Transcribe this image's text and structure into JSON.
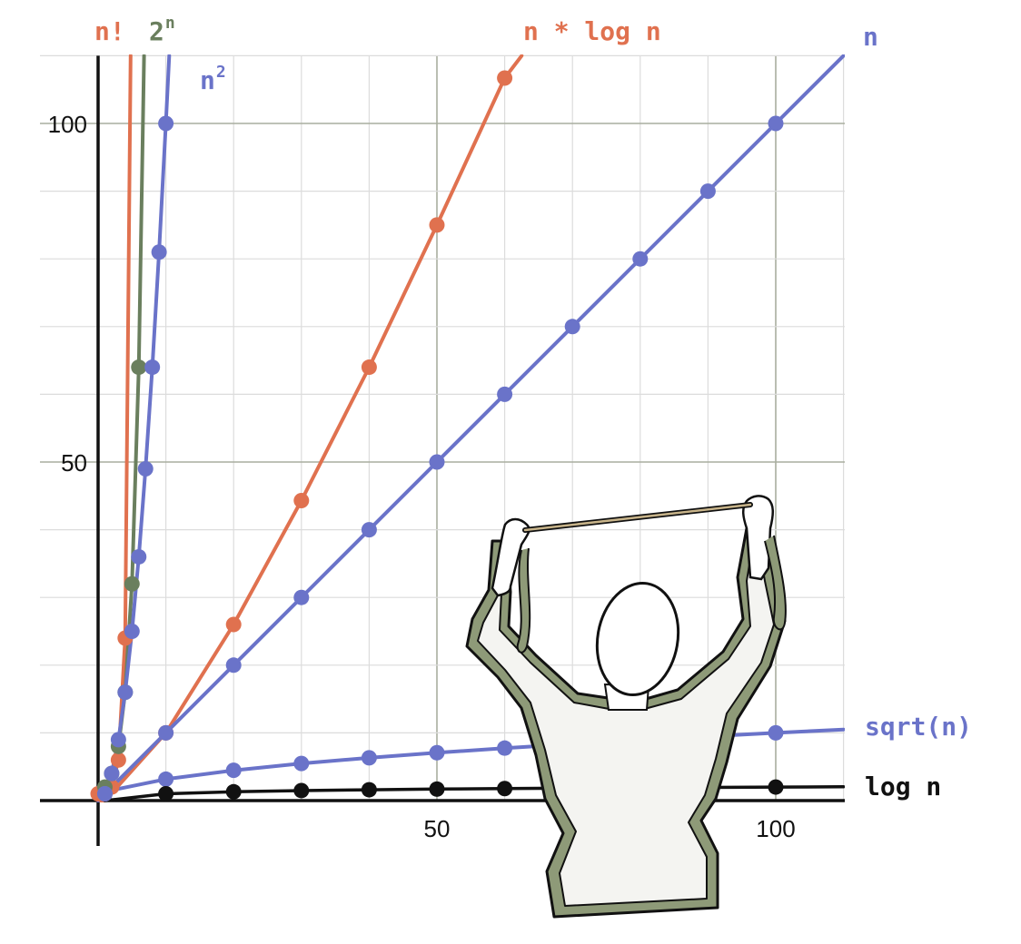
{
  "colors": {
    "blue": "#6a73c9",
    "orange": "#e0714f",
    "green": "#6a7f5e",
    "black": "#111111",
    "grid_major": "#a9ae9f",
    "grid_minor": "#dcdcdc",
    "figure_body": "#f4f4f1",
    "figure_trim": "#8e9a78"
  },
  "decoration": {
    "figure": "person-holding-stretched-rope-icon"
  },
  "chart_data": {
    "type": "line",
    "xlim": [
      0,
      110
    ],
    "ylim": [
      0,
      110
    ],
    "grid": true,
    "x_ticks": [
      {
        "value": 50,
        "label": "50"
      },
      {
        "value": 100,
        "label": "100"
      }
    ],
    "y_ticks": [
      {
        "value": 50,
        "label": "50"
      },
      {
        "value": 100,
        "label": "100"
      }
    ],
    "curve_labels": [
      {
        "text": "n!",
        "sup": "",
        "series": 0
      },
      {
        "text": "2",
        "sup": "n",
        "series": 1
      },
      {
        "text": "n",
        "sup": "2",
        "series": 2
      },
      {
        "text": "n * log n",
        "sup": "",
        "series": 3
      },
      {
        "text": "n",
        "sup": "",
        "series": 4
      },
      {
        "text": "sqrt(n)",
        "sup": "",
        "series": 5
      },
      {
        "text": "log n",
        "sup": "",
        "series": 6
      }
    ],
    "series": [
      {
        "name": "n!",
        "color": "orange",
        "line_x": [
          0,
          1,
          2,
          3,
          4,
          4.8
        ],
        "line_y": [
          1,
          1,
          2,
          6,
          24,
          110
        ],
        "points": [
          [
            0,
            1
          ],
          [
            1,
            1
          ],
          [
            2,
            2
          ],
          [
            3,
            6
          ],
          [
            4,
            24
          ]
        ]
      },
      {
        "name": "2^n",
        "color": "green",
        "line_x": [
          0,
          1,
          2,
          3,
          4,
          5,
          6,
          6.78
        ],
        "line_y": [
          1,
          2,
          4,
          8,
          16,
          32,
          64,
          110
        ],
        "points": [
          [
            1,
            2
          ],
          [
            2,
            4
          ],
          [
            3,
            8
          ],
          [
            4,
            16
          ],
          [
            5,
            32
          ],
          [
            6,
            64
          ]
        ]
      },
      {
        "name": "n^2",
        "color": "blue",
        "line_x": [
          0,
          1,
          2,
          3,
          4,
          5,
          6,
          7,
          8,
          9,
          10,
          10.5
        ],
        "line_y": [
          0,
          1,
          4,
          9,
          16,
          25,
          36,
          49,
          64,
          81,
          100,
          110
        ],
        "points": [
          [
            1,
            1
          ],
          [
            2,
            4
          ],
          [
            3,
            9
          ],
          [
            4,
            16
          ],
          [
            5,
            25
          ],
          [
            6,
            36
          ],
          [
            7,
            49
          ],
          [
            8,
            64
          ],
          [
            9,
            81
          ],
          [
            10,
            100
          ]
        ]
      },
      {
        "name": "n * log n",
        "color": "orange",
        "line_x": [
          0,
          1,
          10,
          20,
          30,
          40,
          50,
          60,
          62.5
        ],
        "line_y": [
          0,
          0,
          10,
          26,
          44.3,
          64,
          85,
          106.7,
          110
        ],
        "points": [
          [
            10,
            10
          ],
          [
            20,
            26
          ],
          [
            30,
            44.3
          ],
          [
            40,
            64
          ],
          [
            50,
            85
          ],
          [
            60,
            106.7
          ]
        ]
      },
      {
        "name": "n",
        "color": "blue",
        "line_x": [
          0,
          110
        ],
        "line_y": [
          0,
          110
        ],
        "points": [
          [
            10,
            10
          ],
          [
            20,
            20
          ],
          [
            30,
            30
          ],
          [
            40,
            40
          ],
          [
            50,
            50
          ],
          [
            60,
            60
          ],
          [
            70,
            70
          ],
          [
            80,
            80
          ],
          [
            90,
            90
          ],
          [
            100,
            100
          ]
        ]
      },
      {
        "name": "sqrt(n)",
        "color": "blue",
        "line_x": [
          0,
          1,
          3,
          10,
          20,
          30,
          40,
          50,
          60,
          70,
          80,
          90,
          100,
          110
        ],
        "line_y": [
          0,
          1,
          1.73,
          3.16,
          4.47,
          5.48,
          6.32,
          7.07,
          7.75,
          8.37,
          8.94,
          9.49,
          10,
          10.5
        ],
        "points": [
          [
            1,
            1
          ],
          [
            10,
            3.16
          ],
          [
            20,
            4.47
          ],
          [
            30,
            5.48
          ],
          [
            40,
            6.32
          ],
          [
            50,
            7.07
          ],
          [
            60,
            7.75
          ],
          [
            70,
            8.37
          ],
          [
            80,
            8.94
          ],
          [
            90,
            9.49
          ],
          [
            100,
            10
          ]
        ]
      },
      {
        "name": "log n",
        "color": "black",
        "line_x": [
          1,
          10,
          20,
          30,
          40,
          50,
          60,
          70,
          80,
          90,
          100,
          110
        ],
        "line_y": [
          0,
          1,
          1.3,
          1.48,
          1.6,
          1.7,
          1.78,
          1.85,
          1.9,
          1.95,
          2,
          2.04
        ],
        "points": [
          [
            10,
            1
          ],
          [
            20,
            1.3
          ],
          [
            30,
            1.48
          ],
          [
            40,
            1.6
          ],
          [
            50,
            1.7
          ],
          [
            60,
            1.78
          ],
          [
            70,
            1.85
          ],
          [
            80,
            1.9
          ],
          [
            90,
            1.95
          ],
          [
            100,
            2
          ]
        ]
      }
    ]
  }
}
